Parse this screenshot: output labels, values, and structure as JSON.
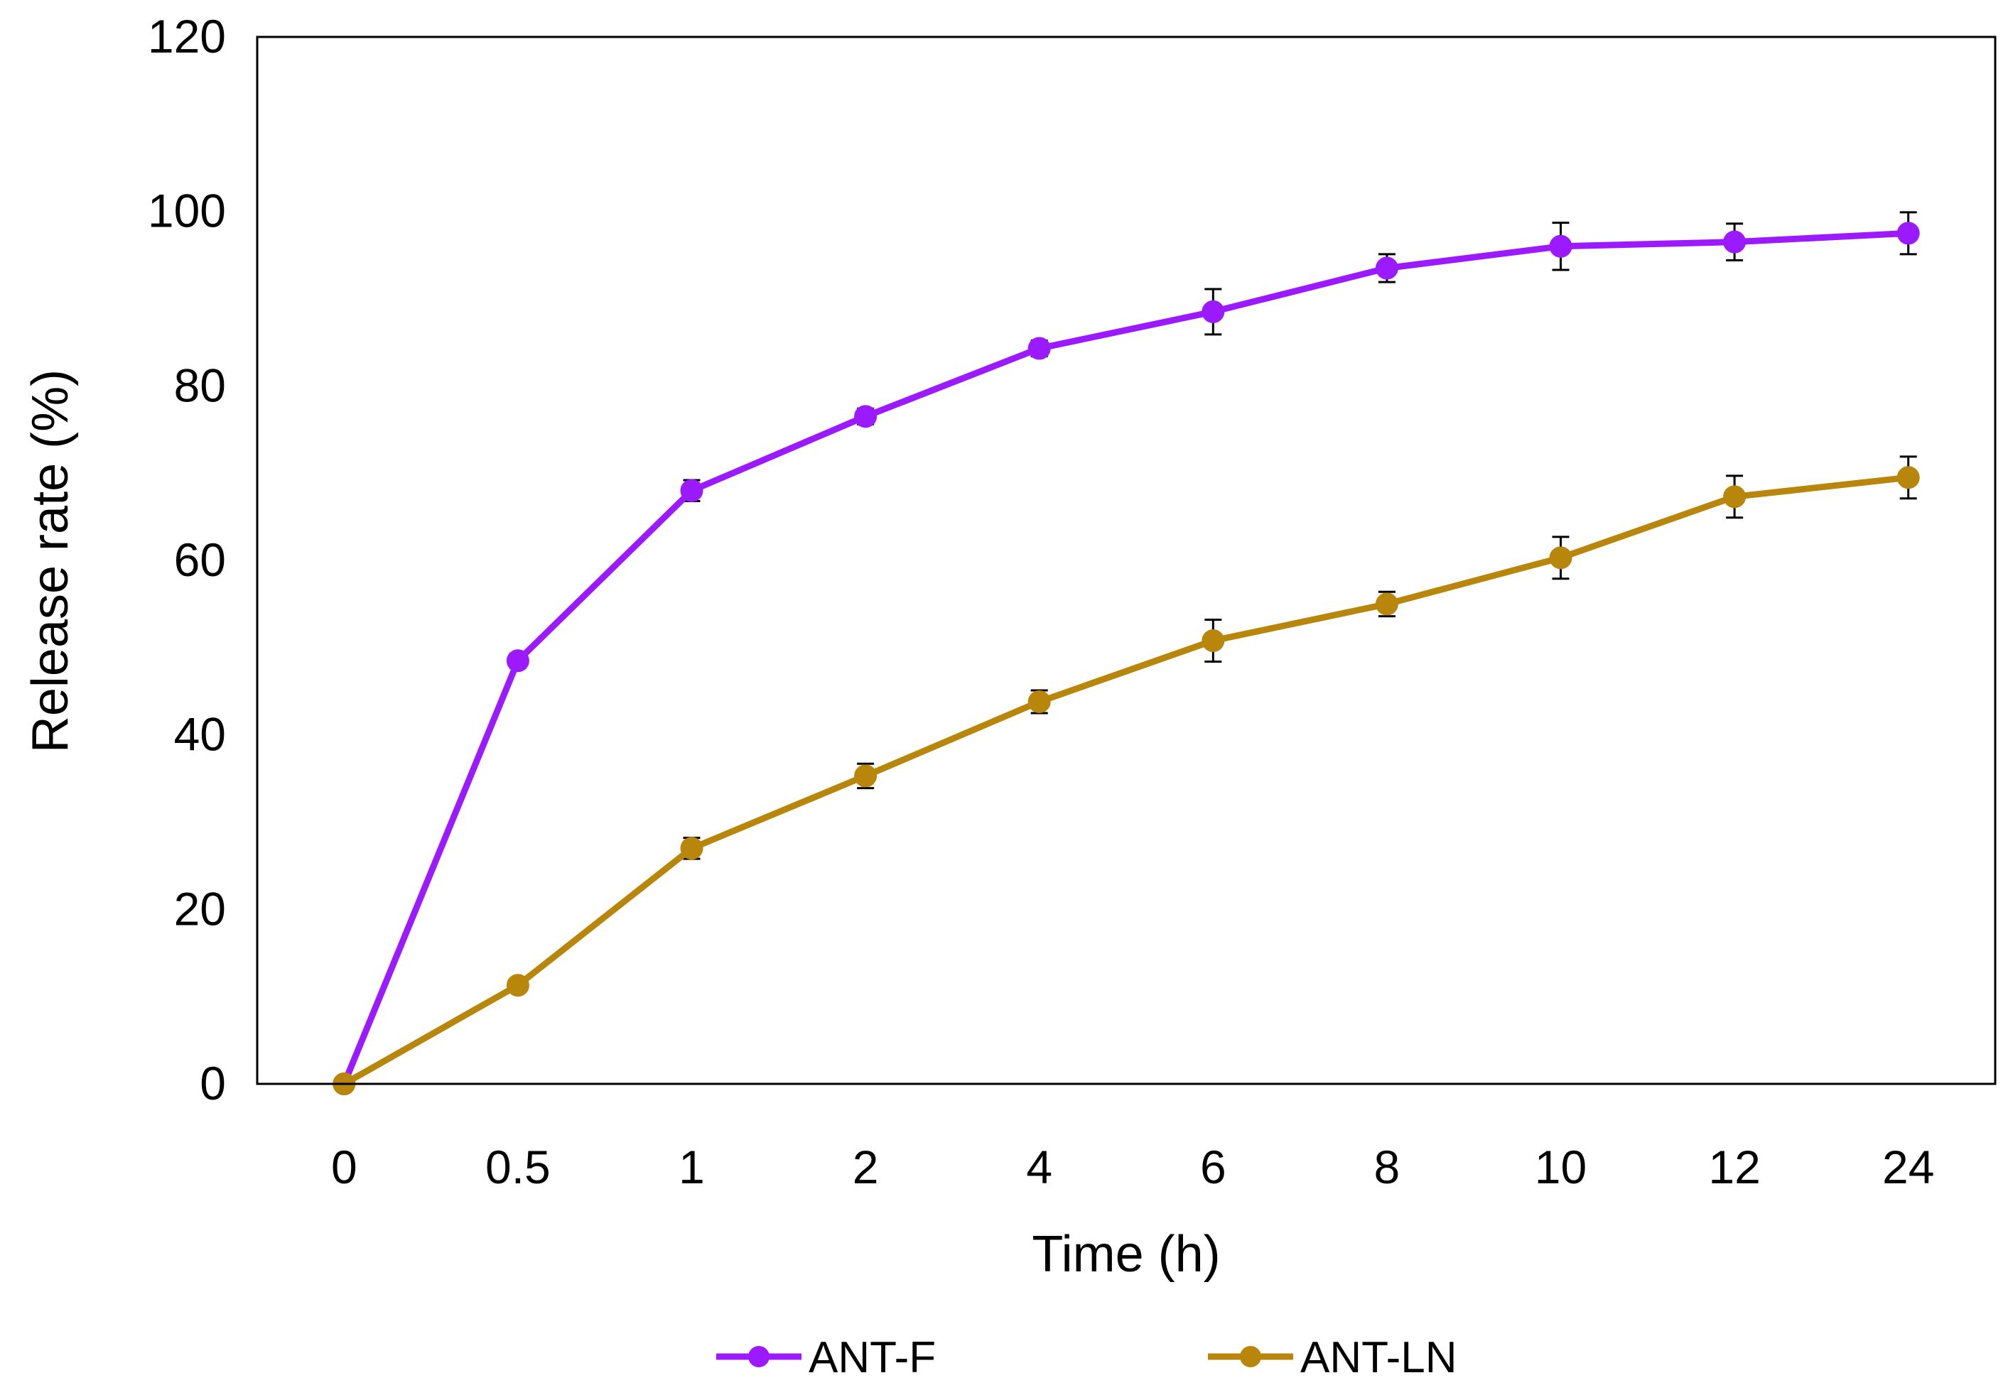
{
  "chart_data": {
    "type": "line",
    "title": "",
    "xlabel": "Time (h)",
    "ylabel": "Release rate (%)",
    "x_axis_type": "categorical",
    "categories": [
      "0",
      "0.5",
      "1",
      "2",
      "4",
      "6",
      "8",
      "10",
      "12",
      "24"
    ],
    "ylim": [
      0,
      120
    ],
    "yticks": [
      0,
      20,
      40,
      60,
      80,
      100,
      120
    ],
    "grid": false,
    "legend_position": "bottom",
    "series": [
      {
        "name": "ANT-F",
        "color": "#9B1AFF",
        "marker": "circle",
        "values": [
          0,
          48.5,
          68,
          76.5,
          84.3,
          88.5,
          93.5,
          96,
          96.5,
          97.5
        ],
        "errors": [
          0,
          0.8,
          1.2,
          0.9,
          0.9,
          2.6,
          1.6,
          2.7,
          2.1,
          2.4
        ]
      },
      {
        "name": "ANT-LN",
        "color": "#B8860B",
        "marker": "circle",
        "values": [
          0,
          11.3,
          27,
          35.3,
          43.8,
          50.8,
          55,
          60.3,
          67.3,
          69.5
        ],
        "errors": [
          0,
          0.5,
          1.2,
          1.4,
          1.3,
          2.4,
          1.4,
          2.4,
          2.4,
          2.4
        ]
      }
    ]
  }
}
